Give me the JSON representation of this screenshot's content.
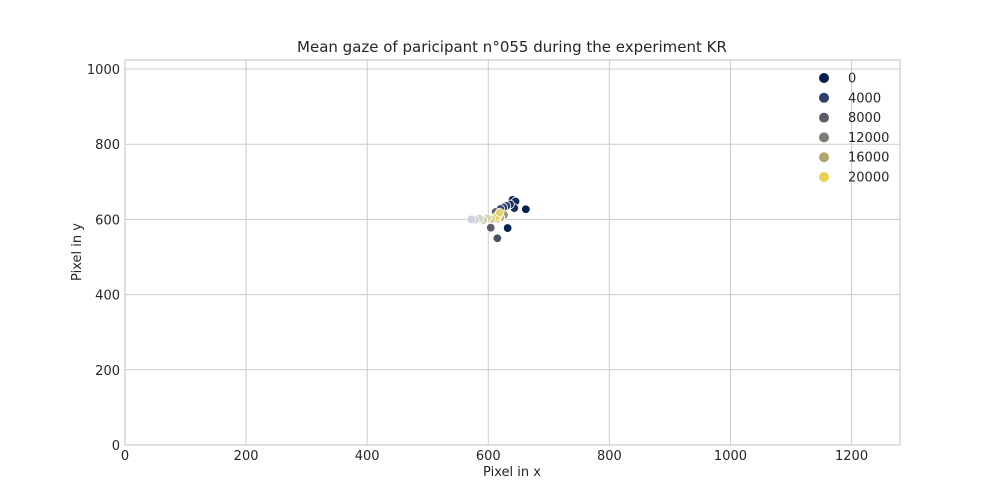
{
  "chart_data": {
    "type": "scatter",
    "title": "Mean gaze of paricipant n°055 during the experiment KR",
    "xlabel": "Pixel in x",
    "ylabel": "Pixel in y",
    "xlim": [
      0,
      1280
    ],
    "ylim": [
      0,
      1024
    ],
    "xticks": [
      0,
      200,
      400,
      600,
      800,
      1000,
      1200
    ],
    "yticks": [
      0,
      200,
      400,
      600,
      800,
      1000
    ],
    "grid": true,
    "legend": {
      "placement": "top-right",
      "entries": [
        {
          "label": "0",
          "color": "#00204c"
        },
        {
          "label": "4000",
          "color": "#2a3f6b"
        },
        {
          "label": "8000",
          "color": "#5b5d6b"
        },
        {
          "label": "12000",
          "color": "#7f7c75"
        },
        {
          "label": "16000",
          "color": "#b3a66d"
        },
        {
          "label": "20000",
          "color": "#ead353"
        }
      ]
    },
    "color_scale": {
      "min": 0,
      "max": 24000,
      "stops": [
        "#00204c",
        "#2a3f6b",
        "#5b5d6b",
        "#7f7c75",
        "#b3a66d",
        "#ead353",
        "#c8d3e2"
      ]
    },
    "points": [
      {
        "x": 662,
        "y": 627,
        "t": 0
      },
      {
        "x": 632,
        "y": 577,
        "t": 300
      },
      {
        "x": 640,
        "y": 652,
        "t": 800
      },
      {
        "x": 645,
        "y": 648,
        "t": 1500
      },
      {
        "x": 643,
        "y": 630,
        "t": 2200
      },
      {
        "x": 636,
        "y": 640,
        "t": 3000
      },
      {
        "x": 630,
        "y": 636,
        "t": 4000
      },
      {
        "x": 625,
        "y": 632,
        "t": 5000
      },
      {
        "x": 620,
        "y": 628,
        "t": 6000
      },
      {
        "x": 615,
        "y": 550,
        "t": 6500
      },
      {
        "x": 604,
        "y": 578,
        "t": 8000
      },
      {
        "x": 612,
        "y": 620,
        "t": 9000
      },
      {
        "x": 618,
        "y": 615,
        "t": 10000
      },
      {
        "x": 622,
        "y": 608,
        "t": 12000
      },
      {
        "x": 626,
        "y": 612,
        "t": 14000
      },
      {
        "x": 620,
        "y": 605,
        "t": 16000
      },
      {
        "x": 614,
        "y": 602,
        "t": 18000
      },
      {
        "x": 617,
        "y": 611,
        "t": 19500
      },
      {
        "x": 613,
        "y": 607,
        "t": 20000
      },
      {
        "x": 619,
        "y": 618,
        "t": 21000
      },
      {
        "x": 605,
        "y": 600,
        "t": 22000
      },
      {
        "x": 598,
        "y": 603,
        "t": 22500
      },
      {
        "x": 592,
        "y": 598,
        "t": 23000
      },
      {
        "x": 585,
        "y": 602,
        "t": 23300
      },
      {
        "x": 578,
        "y": 599,
        "t": 23600
      },
      {
        "x": 572,
        "y": 600,
        "t": 23900
      }
    ]
  }
}
